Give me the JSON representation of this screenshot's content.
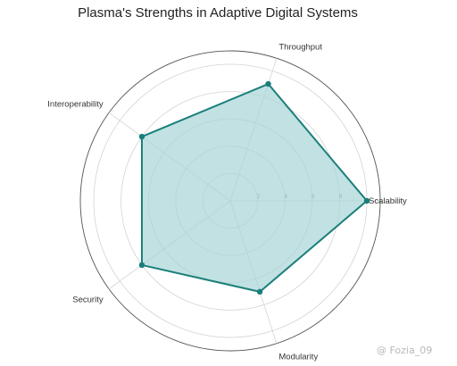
{
  "chart_data": {
    "type": "radar",
    "title": "Plasma's Strengths in Adaptive Digital Systems",
    "categories": [
      "Scalability",
      "Throughput",
      "Interoperability",
      "Security",
      "Modularity"
    ],
    "values": [
      10,
      9,
      8,
      8,
      7
    ],
    "rlim": [
      0,
      10
    ],
    "r_ticks": [
      2,
      4,
      6,
      8
    ],
    "grid": true,
    "colors": {
      "line": "#1a7f7a",
      "fill": "#a6d4d6"
    }
  },
  "watermark": "@ Fozia_09"
}
